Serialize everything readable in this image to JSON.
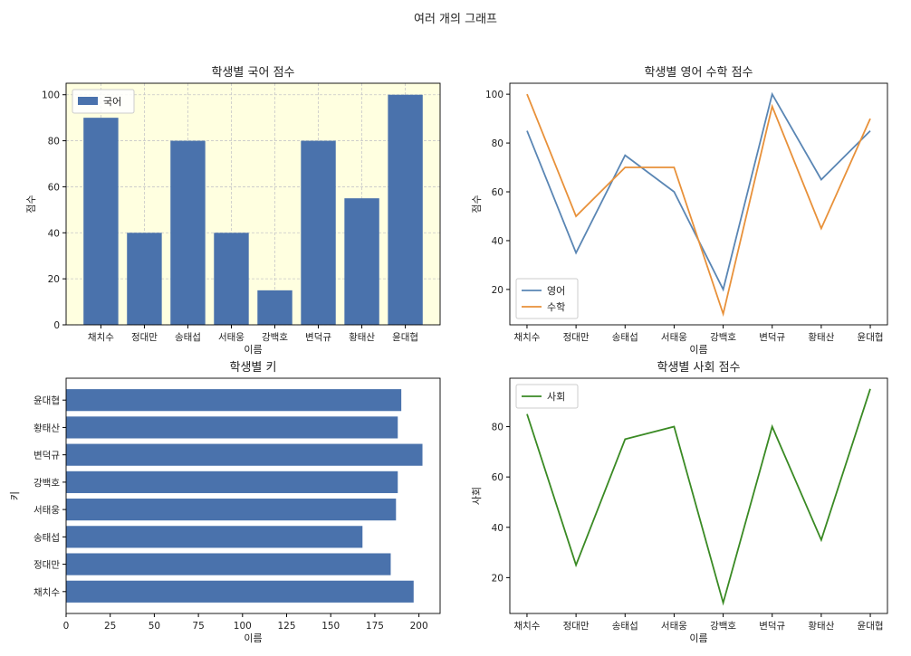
{
  "suptitle": "여러 개의 그래프",
  "colors": {
    "bar": "#4a72ac",
    "english": "#5a86b4",
    "math": "#e8913a",
    "social": "#3a8a24",
    "panel1_bg": "#ffffe0",
    "grid": "#c8c8c8"
  },
  "chart_data": [
    {
      "type": "bar",
      "title": "학생별 국어 점수",
      "xlabel": "이름",
      "ylabel": "점수",
      "categories": [
        "채치수",
        "정대만",
        "송태섭",
        "서태웅",
        "강백호",
        "변덕규",
        "황태산",
        "윤대협"
      ],
      "series": [
        {
          "name": "국어",
          "values": [
            90,
            40,
            80,
            40,
            15,
            80,
            55,
            100
          ]
        }
      ],
      "ylim": [
        0,
        105
      ],
      "yticks": [
        0,
        20,
        40,
        60,
        80,
        100
      ],
      "grid": true,
      "legend": "top-left"
    },
    {
      "type": "line",
      "title": "학생별 영어 수학 점수",
      "xlabel": "이름",
      "ylabel": "점수",
      "categories": [
        "채치수",
        "정대만",
        "송태섭",
        "서태웅",
        "강백호",
        "변덕규",
        "황태산",
        "윤대협"
      ],
      "series": [
        {
          "name": "영어",
          "values": [
            85,
            35,
            75,
            60,
            20,
            100,
            65,
            85
          ]
        },
        {
          "name": "수학",
          "values": [
            100,
            50,
            70,
            70,
            10,
            95,
            45,
            90
          ]
        }
      ],
      "ylim": [
        5.5,
        104.5
      ],
      "yticks": [
        20,
        40,
        60,
        80,
        100
      ],
      "grid": false,
      "legend": "bottom-left"
    },
    {
      "type": "barh",
      "title": "학생별 키",
      "xlabel": "이름",
      "ylabel": "키",
      "categories": [
        "채치수",
        "정대만",
        "송태섭",
        "서태웅",
        "강백호",
        "변덕규",
        "황태산",
        "윤대협"
      ],
      "values": [
        197,
        184,
        168,
        187,
        188,
        202,
        188,
        190
      ],
      "xlim": [
        0,
        212
      ],
      "xticks": [
        0,
        25,
        50,
        75,
        100,
        125,
        150,
        175,
        200
      ],
      "grid": false
    },
    {
      "type": "line",
      "title": "학생별 사회 점수",
      "xlabel": "이름",
      "ylabel": "사회",
      "categories": [
        "채치수",
        "정대만",
        "송태섭",
        "서태웅",
        "강백호",
        "변덕규",
        "황태산",
        "윤대협"
      ],
      "series": [
        {
          "name": "사회",
          "values": [
            85,
            25,
            75,
            80,
            10,
            80,
            35,
            95
          ]
        }
      ],
      "ylim": [
        5.75,
        99.25
      ],
      "yticks": [
        20,
        40,
        60,
        80
      ],
      "grid": false,
      "legend": "top-left"
    }
  ]
}
